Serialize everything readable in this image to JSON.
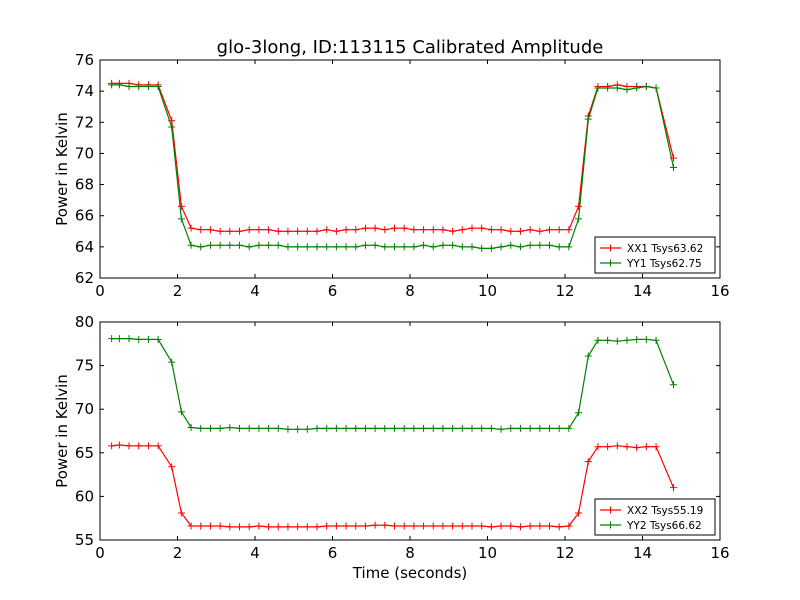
{
  "title": "glo-3long, ID:113115 Calibrated Amplitude",
  "colors": {
    "red": "#ff0000",
    "green": "#008000"
  },
  "chart_data": [
    {
      "type": "line",
      "ylabel": "Power in Kelvin",
      "xlabel": "",
      "xlim": [
        0,
        16
      ],
      "ylim": [
        62,
        76
      ],
      "xticks": [
        0,
        2,
        4,
        6,
        8,
        10,
        12,
        14,
        16
      ],
      "yticks": [
        62,
        64,
        66,
        68,
        70,
        72,
        74,
        76
      ],
      "legend_position": "lower-right",
      "x": [
        0.3,
        0.5,
        0.75,
        1.0,
        1.25,
        1.5,
        1.85,
        2.1,
        2.35,
        2.6,
        2.85,
        3.1,
        3.35,
        3.6,
        3.85,
        4.1,
        4.35,
        4.6,
        4.85,
        5.1,
        5.35,
        5.6,
        5.85,
        6.1,
        6.35,
        6.6,
        6.85,
        7.1,
        7.35,
        7.6,
        7.85,
        8.1,
        8.35,
        8.6,
        8.85,
        9.1,
        9.35,
        9.6,
        9.85,
        10.1,
        10.35,
        10.6,
        10.85,
        11.1,
        11.35,
        11.6,
        11.85,
        12.1,
        12.35,
        12.6,
        12.85,
        13.1,
        13.35,
        13.6,
        13.85,
        14.1,
        14.35,
        14.8
      ],
      "series": [
        {
          "name": "XX1 Tsys63.62",
          "color": "#ff0000",
          "values": [
            74.5,
            74.5,
            74.5,
            74.4,
            74.4,
            74.4,
            72.1,
            66.6,
            65.2,
            65.1,
            65.1,
            65.0,
            65.0,
            65.0,
            65.1,
            65.1,
            65.1,
            65.0,
            65.0,
            65.0,
            65.0,
            65.0,
            65.1,
            65.0,
            65.1,
            65.1,
            65.2,
            65.2,
            65.1,
            65.2,
            65.2,
            65.1,
            65.1,
            65.1,
            65.1,
            65.0,
            65.1,
            65.2,
            65.2,
            65.1,
            65.1,
            65.0,
            65.0,
            65.1,
            65.0,
            65.1,
            65.1,
            65.1,
            66.6,
            72.4,
            74.3,
            74.3,
            74.4,
            74.3,
            74.3,
            74.3,
            74.2,
            69.7
          ]
        },
        {
          "name": "YY1 Tsys62.75",
          "color": "#008000",
          "values": [
            74.4,
            74.4,
            74.3,
            74.3,
            74.3,
            74.3,
            71.7,
            65.8,
            64.1,
            64.0,
            64.1,
            64.1,
            64.1,
            64.1,
            64.0,
            64.1,
            64.1,
            64.1,
            64.0,
            64.0,
            64.0,
            64.0,
            64.0,
            64.0,
            64.0,
            64.0,
            64.1,
            64.1,
            64.0,
            64.0,
            64.0,
            64.0,
            64.1,
            64.0,
            64.1,
            64.1,
            64.0,
            64.0,
            63.9,
            63.9,
            64.0,
            64.1,
            64.0,
            64.1,
            64.1,
            64.1,
            64.0,
            64.0,
            65.8,
            72.2,
            74.2,
            74.2,
            74.2,
            74.1,
            74.2,
            74.3,
            74.2,
            69.1
          ]
        }
      ]
    },
    {
      "type": "line",
      "ylabel": "Power in Kelvin",
      "xlabel": "Time (seconds)",
      "xlim": [
        0,
        16
      ],
      "ylim": [
        55,
        80
      ],
      "xticks": [
        0,
        2,
        4,
        6,
        8,
        10,
        12,
        14,
        16
      ],
      "yticks": [
        55,
        60,
        65,
        70,
        75,
        80
      ],
      "legend_position": "lower-right",
      "x": [
        0.3,
        0.5,
        0.75,
        1.0,
        1.25,
        1.5,
        1.85,
        2.1,
        2.35,
        2.6,
        2.85,
        3.1,
        3.35,
        3.6,
        3.85,
        4.1,
        4.35,
        4.6,
        4.85,
        5.1,
        5.35,
        5.6,
        5.85,
        6.1,
        6.35,
        6.6,
        6.85,
        7.1,
        7.35,
        7.6,
        7.85,
        8.1,
        8.35,
        8.6,
        8.85,
        9.1,
        9.35,
        9.6,
        9.85,
        10.1,
        10.35,
        10.6,
        10.85,
        11.1,
        11.35,
        11.6,
        11.85,
        12.1,
        12.35,
        12.6,
        12.85,
        13.1,
        13.35,
        13.6,
        13.85,
        14.1,
        14.35,
        14.8
      ],
      "series": [
        {
          "name": "XX2 Tsys55.19",
          "color": "#ff0000",
          "values": [
            65.8,
            65.9,
            65.8,
            65.8,
            65.8,
            65.8,
            63.4,
            58.1,
            56.6,
            56.6,
            56.6,
            56.6,
            56.5,
            56.5,
            56.5,
            56.6,
            56.5,
            56.5,
            56.5,
            56.5,
            56.5,
            56.5,
            56.6,
            56.6,
            56.6,
            56.6,
            56.6,
            56.7,
            56.7,
            56.6,
            56.6,
            56.6,
            56.6,
            56.6,
            56.6,
            56.6,
            56.6,
            56.6,
            56.6,
            56.5,
            56.6,
            56.6,
            56.5,
            56.6,
            56.6,
            56.6,
            56.5,
            56.6,
            58.1,
            64.0,
            65.7,
            65.7,
            65.8,
            65.7,
            65.6,
            65.7,
            65.7,
            61.0
          ]
        },
        {
          "name": "YY2 Tsys66.62",
          "color": "#008000",
          "values": [
            78.1,
            78.1,
            78.1,
            78.0,
            78.0,
            78.0,
            75.4,
            69.7,
            67.9,
            67.8,
            67.8,
            67.8,
            67.9,
            67.8,
            67.8,
            67.8,
            67.8,
            67.8,
            67.7,
            67.7,
            67.7,
            67.8,
            67.8,
            67.8,
            67.8,
            67.8,
            67.8,
            67.8,
            67.8,
            67.8,
            67.8,
            67.8,
            67.8,
            67.8,
            67.8,
            67.8,
            67.8,
            67.8,
            67.8,
            67.8,
            67.7,
            67.8,
            67.8,
            67.8,
            67.8,
            67.8,
            67.8,
            67.8,
            69.6,
            76.1,
            77.9,
            77.9,
            77.8,
            77.9,
            78.0,
            78.0,
            77.9,
            72.8
          ]
        }
      ]
    }
  ]
}
